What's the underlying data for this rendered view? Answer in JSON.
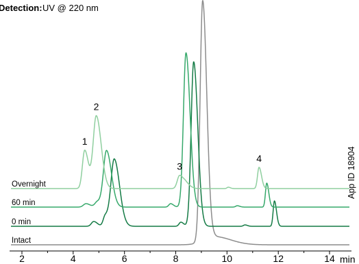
{
  "header": {
    "label": "Detection:",
    "value": "UV @ 220 nm"
  },
  "side_note": "App ID 18904",
  "chart_data": {
    "type": "line",
    "title": "",
    "xlabel": "min",
    "ylabel": "",
    "xlim": [
      1.9,
      14.9
    ],
    "x_ticks": [
      2,
      4,
      6,
      8,
      10,
      12,
      14
    ],
    "grid": false,
    "legend": "none",
    "annotations": [
      {
        "label": "1",
        "x": 4.45
      },
      {
        "label": "2",
        "x": 4.9
      },
      {
        "label": "3",
        "x": 8.15
      },
      {
        "label": "4",
        "x": 11.25
      }
    ],
    "series": [
      {
        "name": "Overnight",
        "color": "#8fcf9f",
        "baseline": 0.82,
        "peaks": [
          {
            "x": 4.45,
            "height": 0.56,
            "width": 0.09
          },
          {
            "x": 4.9,
            "height": 1.06,
            "width": 0.12
          },
          {
            "x": 8.15,
            "height": 0.19,
            "width": 0.09
          },
          {
            "x": 8.4,
            "height": 0.07,
            "width": 0.1
          },
          {
            "x": 10.05,
            "height": 0.02,
            "width": 0.05
          },
          {
            "x": 11.25,
            "height": 0.31,
            "width": 0.06
          }
        ]
      },
      {
        "name": "60 min",
        "color": "#35a86a",
        "baseline": 0.55,
        "peaks": [
          {
            "x": 4.5,
            "height": 0.05,
            "width": 0.1
          },
          {
            "x": 4.95,
            "height": 0.08,
            "width": 0.1
          },
          {
            "x": 5.3,
            "height": 0.82,
            "width": 0.12
          },
          {
            "x": 7.8,
            "height": 0.05,
            "width": 0.07
          },
          {
            "x": 8.4,
            "height": 2.25,
            "width": 0.1
          },
          {
            "x": 10.4,
            "height": 0.02,
            "width": 0.06
          },
          {
            "x": 11.55,
            "height": 0.35,
            "width": 0.05
          }
        ]
      },
      {
        "name": "0 min",
        "color": "#137a44",
        "baseline": 0.27,
        "peaks": [
          {
            "x": 4.8,
            "height": 0.07,
            "width": 0.09
          },
          {
            "x": 5.25,
            "height": 0.15,
            "width": 0.08
          },
          {
            "x": 5.6,
            "height": 0.98,
            "width": 0.13
          },
          {
            "x": 8.2,
            "height": 0.06,
            "width": 0.07
          },
          {
            "x": 8.7,
            "height": 2.4,
            "width": 0.1
          },
          {
            "x": 10.7,
            "height": 0.02,
            "width": 0.06
          },
          {
            "x": 11.85,
            "height": 0.37,
            "width": 0.05
          }
        ]
      },
      {
        "name": "Intact",
        "color": "#8c8c8c",
        "baseline": 0.0,
        "peaks": [
          {
            "x": 9.05,
            "height": 3.5,
            "width": 0.1
          },
          {
            "x": 9.5,
            "height": 0.12,
            "width": 0.4
          }
        ]
      }
    ]
  }
}
